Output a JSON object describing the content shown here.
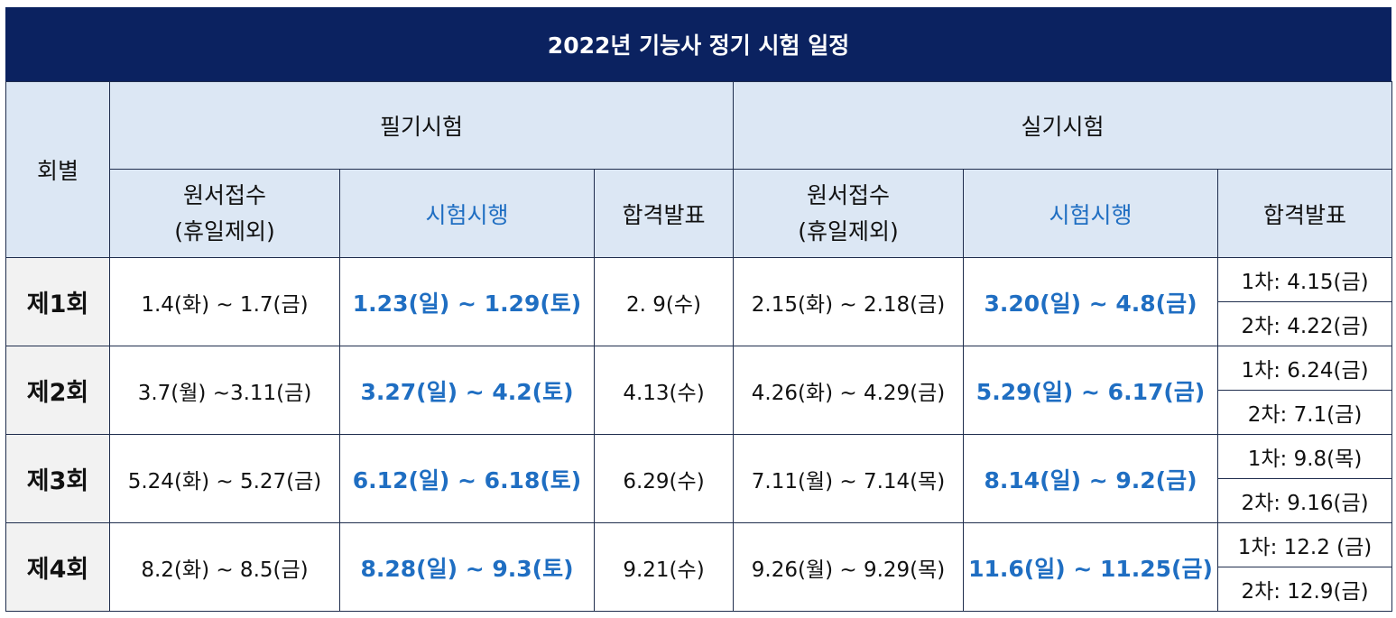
{
  "title": "2022년 기능사 정기 시험 일정",
  "headers": {
    "round": "회별",
    "written": "필기시험",
    "practical": "실기시험",
    "apply_line1": "원서접수",
    "apply_line2": "(휴일제외)",
    "exam": "시험시행",
    "result": "합격발표"
  },
  "accent_color": "#1f6ec2",
  "header_bg": "#0b2260",
  "rows": [
    {
      "round": "제1회",
      "w_apply": "1.4(화) ~ 1.7(금)",
      "w_exam": "1.23(일) ~ 1.29(토)",
      "w_result": "2. 9(수)",
      "p_apply": "2.15(화) ~ 2.18(금)",
      "p_exam": "3.20(일) ~ 4.8(금)",
      "p_result1": "1차: 4.15(금)",
      "p_result2": "2차: 4.22(금)"
    },
    {
      "round": "제2회",
      "w_apply": "3.7(월) ~3.11(금)",
      "w_exam": "3.27(일) ~ 4.2(토)",
      "w_result": "4.13(수)",
      "p_apply": "4.26(화) ~ 4.29(금)",
      "p_exam": "5.29(일) ~ 6.17(금)",
      "p_result1": "1차: 6.24(금)",
      "p_result2": "2차: 7.1(금)"
    },
    {
      "round": "제3회",
      "w_apply": "5.24(화) ~ 5.27(금)",
      "w_exam": "6.12(일) ~ 6.18(토)",
      "w_result": "6.29(수)",
      "p_apply": "7.11(월) ~ 7.14(목)",
      "p_exam": "8.14(일) ~ 9.2(금)",
      "p_result1": "1차: 9.8(목)",
      "p_result2": "2차: 9.16(금)"
    },
    {
      "round": "제4회",
      "w_apply": "8.2(화) ~ 8.5(금)",
      "w_exam": "8.28(일) ~ 9.3(토)",
      "w_result": "9.21(수)",
      "p_apply": "9.26(월) ~ 9.29(목)",
      "p_exam": "11.6(일) ~ 11.25(금)",
      "p_result1": "1차: 12.2 (금)",
      "p_result2": "2차: 12.9(금)"
    }
  ]
}
